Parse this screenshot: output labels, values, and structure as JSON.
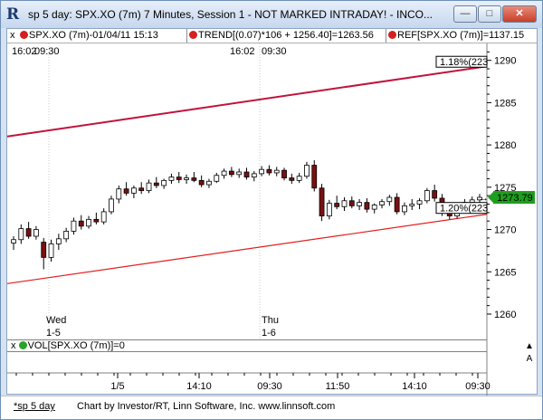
{
  "window": {
    "title": "sp 5 day: SPX.XO (7m) 7 Minutes, Session 1 - NOT MARKED INTRADAY! - INCO...",
    "minimize_glyph": "—",
    "maximize_glyph": "□",
    "close_glyph": "✕"
  },
  "legend": {
    "collapse": "x",
    "items": [
      "SPX.XO (7m)-01/04/11 15:13",
      "TREND[(0.07)*106 + 1256.40]=1263.56",
      "REF[SPX.XO (7m)]=1137.15"
    ]
  },
  "time_markers": {
    "left_time": "16:02",
    "left_time2": "09:30",
    "mid_time": "16:02",
    "mid_time2": "09:30"
  },
  "price_labels": {
    "upper_pct": "1.18%(223",
    "lower_pct": "1.20%(223",
    "last_price": "1273.79"
  },
  "day_labels": [
    {
      "day": "Wed",
      "date": "1-5"
    },
    {
      "day": "Thu",
      "date": "1-6"
    }
  ],
  "volume": {
    "collapse": "x",
    "label": "VOL[SPX.XO (7m)]=0",
    "scroll_up": "▲",
    "scroll_a": "A"
  },
  "x_axis": [
    "1/5",
    "14:10",
    "09:30",
    "11:50",
    "14:10",
    "09:30"
  ],
  "statusbar": {
    "tab": "*sp 5 day",
    "credit": "Chart by Investor/RT, Linn Software, Inc. www.linnsoft.com"
  },
  "colors": {
    "upper_trend": "#c0143c",
    "lower_trend": "#e02020",
    "last_price_bg": "#1e9e1e",
    "candle_up": "#ffffff",
    "candle_down": "#7a1010"
  },
  "chart_data": {
    "type": "candlestick",
    "title": "",
    "xlabel": "",
    "ylabel": "",
    "ylim": [
      1257,
      1292
    ],
    "y_ticks": [
      1260,
      1265,
      1270,
      1275,
      1280,
      1285,
      1290
    ],
    "trend_lines": [
      {
        "name": "upper channel",
        "from": 1281.0,
        "to": 1289.3
      },
      {
        "name": "lower channel",
        "from": 1263.6,
        "to": 1271.8
      }
    ],
    "candles": [
      [
        1268.4,
        1269.2,
        1267.6,
        1268.8
      ],
      [
        1268.8,
        1270.6,
        1268.3,
        1270.1
      ],
      [
        1270.1,
        1270.9,
        1268.9,
        1269.2
      ],
      [
        1269.2,
        1270.4,
        1268.8,
        1270.0
      ],
      [
        1268.5,
        1269.0,
        1265.3,
        1266.7
      ],
      [
        1266.7,
        1268.8,
        1266.2,
        1268.3
      ],
      [
        1268.3,
        1269.5,
        1267.6,
        1268.9
      ],
      [
        1268.9,
        1270.2,
        1268.5,
        1269.8
      ],
      [
        1269.8,
        1271.4,
        1269.4,
        1271.0
      ],
      [
        1271.0,
        1271.7,
        1270.0,
        1270.4
      ],
      [
        1270.4,
        1271.6,
        1270.1,
        1271.2
      ],
      [
        1271.2,
        1272.0,
        1270.6,
        1270.9
      ],
      [
        1270.9,
        1272.5,
        1270.6,
        1272.1
      ],
      [
        1272.1,
        1274.0,
        1271.8,
        1273.6
      ],
      [
        1273.6,
        1275.2,
        1273.1,
        1274.8
      ],
      [
        1274.8,
        1275.6,
        1274.0,
        1274.3
      ],
      [
        1274.3,
        1275.2,
        1273.7,
        1274.9
      ],
      [
        1274.9,
        1275.6,
        1274.2,
        1274.6
      ],
      [
        1274.6,
        1275.9,
        1274.3,
        1275.5
      ],
      [
        1275.5,
        1276.2,
        1274.9,
        1275.2
      ],
      [
        1275.2,
        1276.0,
        1274.8,
        1275.8
      ],
      [
        1275.8,
        1276.6,
        1275.4,
        1276.2
      ],
      [
        1276.2,
        1276.8,
        1275.5,
        1275.9
      ],
      [
        1275.9,
        1276.5,
        1275.4,
        1276.1
      ],
      [
        1276.1,
        1276.8,
        1275.6,
        1275.8
      ],
      [
        1275.8,
        1276.4,
        1275.0,
        1275.3
      ],
      [
        1275.3,
        1276.0,
        1274.9,
        1275.7
      ],
      [
        1275.7,
        1276.7,
        1275.5,
        1276.4
      ],
      [
        1276.4,
        1277.2,
        1276.0,
        1276.9
      ],
      [
        1276.9,
        1277.4,
        1276.2,
        1276.5
      ],
      [
        1276.5,
        1277.2,
        1276.1,
        1276.8
      ],
      [
        1276.8,
        1277.3,
        1275.9,
        1276.2
      ],
      [
        1276.2,
        1276.9,
        1275.7,
        1276.6
      ],
      [
        1276.6,
        1277.5,
        1276.3,
        1277.1
      ],
      [
        1277.1,
        1277.6,
        1276.4,
        1276.7
      ],
      [
        1276.7,
        1277.4,
        1276.3,
        1277.0
      ],
      [
        1277.0,
        1277.3,
        1275.8,
        1276.1
      ],
      [
        1276.1,
        1276.6,
        1275.4,
        1275.8
      ],
      [
        1275.8,
        1276.7,
        1275.5,
        1276.3
      ],
      [
        1276.3,
        1278.0,
        1276.0,
        1277.6
      ],
      [
        1277.6,
        1278.2,
        1274.5,
        1274.9
      ],
      [
        1274.9,
        1275.4,
        1271.0,
        1271.6
      ],
      [
        1271.6,
        1273.5,
        1271.2,
        1273.1
      ],
      [
        1273.1,
        1274.0,
        1272.4,
        1272.7
      ],
      [
        1272.7,
        1273.8,
        1272.2,
        1273.4
      ],
      [
        1273.4,
        1273.9,
        1272.5,
        1272.8
      ],
      [
        1272.8,
        1273.6,
        1272.3,
        1273.2
      ],
      [
        1273.2,
        1273.7,
        1272.0,
        1272.4
      ],
      [
        1272.4,
        1273.1,
        1271.9,
        1272.9
      ],
      [
        1272.9,
        1273.6,
        1272.5,
        1273.3
      ],
      [
        1273.3,
        1274.1,
        1272.8,
        1273.8
      ],
      [
        1273.8,
        1274.3,
        1271.8,
        1272.1
      ],
      [
        1272.1,
        1273.2,
        1271.7,
        1272.8
      ],
      [
        1272.8,
        1273.6,
        1272.3,
        1273.0
      ],
      [
        1273.0,
        1273.7,
        1272.4,
        1273.4
      ],
      [
        1273.4,
        1274.9,
        1273.1,
        1274.6
      ],
      [
        1274.6,
        1275.3,
        1273.3,
        1273.7
      ],
      [
        1273.7,
        1274.2,
        1271.6,
        1272.0
      ],
      [
        1272.0,
        1272.5,
        1271.2,
        1271.6
      ],
      [
        1271.6,
        1273.2,
        1271.3,
        1272.9
      ],
      [
        1272.9,
        1273.6,
        1272.4,
        1273.2
      ],
      [
        1273.2,
        1273.9,
        1272.8,
        1273.5
      ],
      [
        1273.5,
        1274.2,
        1273.1,
        1273.8
      ]
    ]
  }
}
